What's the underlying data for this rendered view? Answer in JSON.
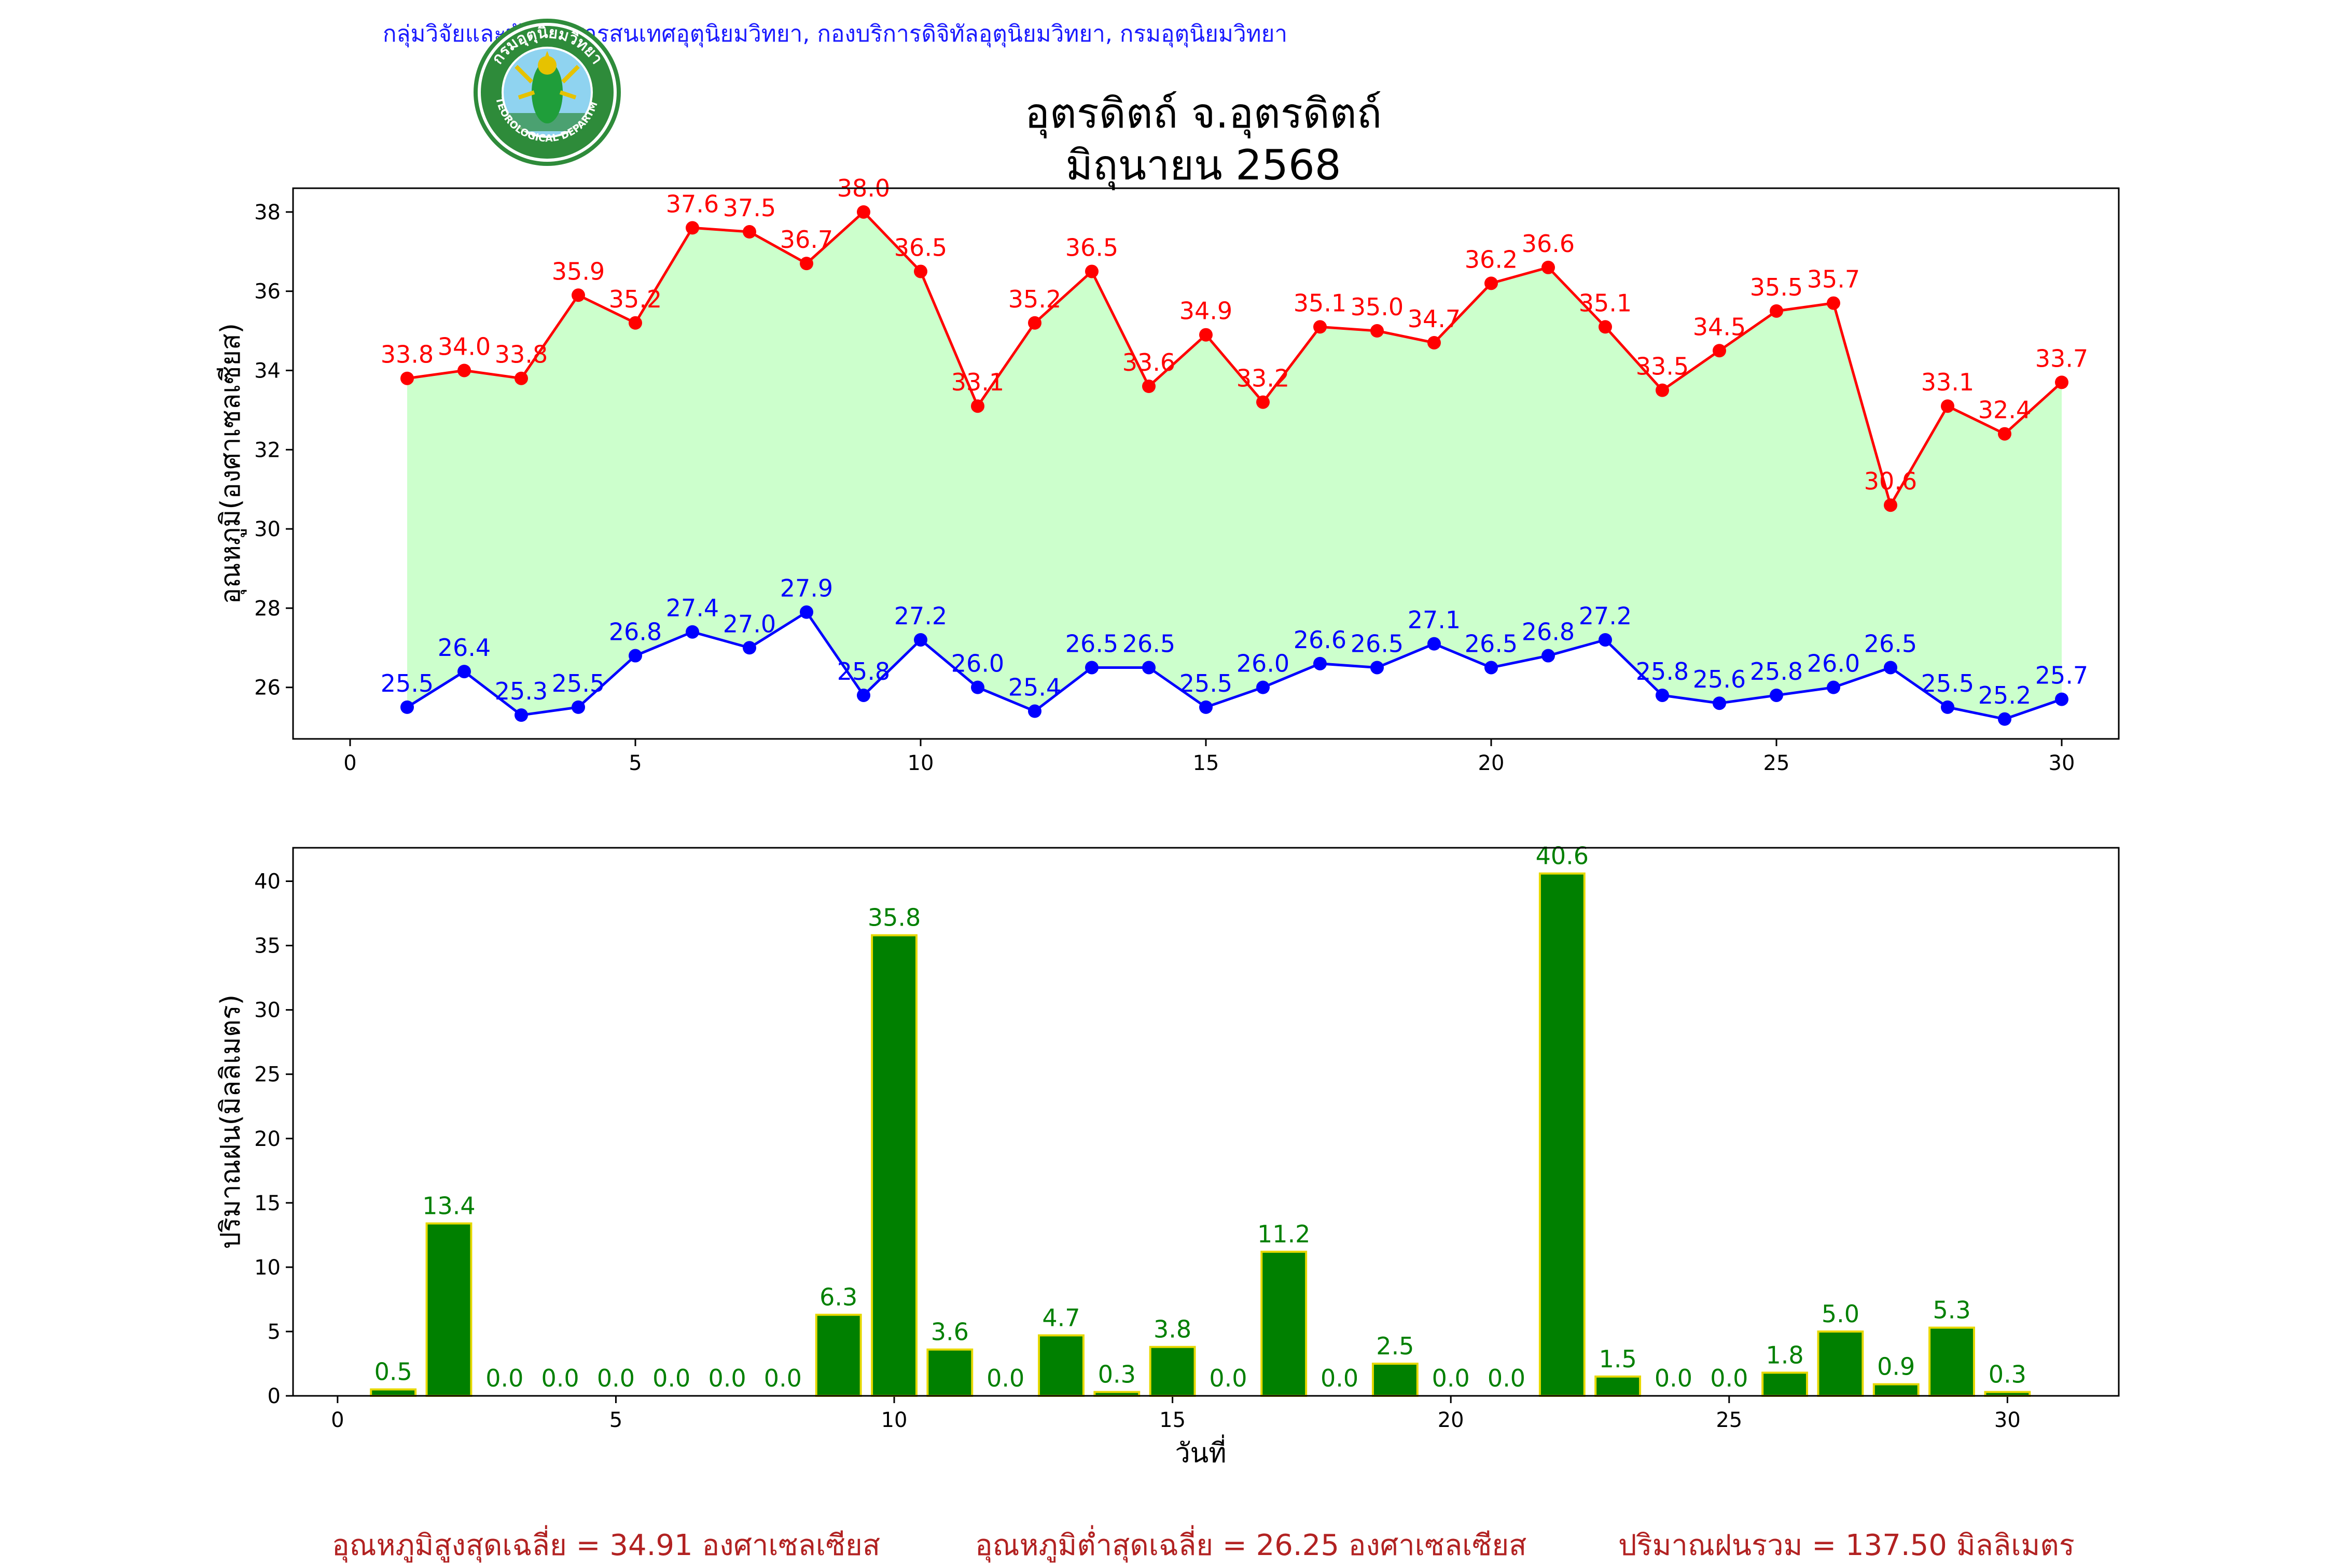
{
  "header": {
    "credit": "กลุ่มวิจัยและพัฒนาสารสนเทศอุตุนิยมวิทยา, กองบริการดิจิทัลอุตุนิยมวิทยา, กรมอุตุนิยมวิทยา",
    "title_line1": "อุตรดิตถ์ จ.อุตรดิตถ์",
    "title_line2": "มิถุนายน 2568",
    "logo_top": "กรมอุตุนิยมวิทยา",
    "logo_bottom": "METEOROLOGICAL DEPARTMENT"
  },
  "colors": {
    "max": "#ff0000",
    "min": "#0000ff",
    "fill": "#ccffcc",
    "rain_bar": "#008000",
    "rain_edge": "#e6d800",
    "rain_label": "#008000",
    "footer": "#b22222"
  },
  "footer": {
    "avg_max": "อุณหภูมิสูงสุดเฉลี่ย = 34.91 องศาเซลเซียส",
    "avg_min": "อุณหภูมิต่ำสุดเฉลี่ย = 26.25 องศาเซลเซียส",
    "total_rain": "ปริมาณฝนรวม = 137.50 มิลลิเมตร"
  },
  "chart_data": [
    {
      "type": "line",
      "ylabel": "อุณหภูมิ(องศาเซลเซียส)",
      "xlim": [
        -1,
        31
      ],
      "ylim": [
        24.7,
        38.6
      ],
      "xticks": [
        0,
        5,
        10,
        15,
        20,
        25,
        30
      ],
      "yticks": [
        26,
        28,
        30,
        32,
        34,
        36,
        38
      ],
      "x": [
        1,
        2,
        3,
        4,
        5,
        6,
        7,
        8,
        9,
        10,
        11,
        12,
        13,
        14,
        15,
        16,
        17,
        18,
        19,
        20,
        21,
        22,
        23,
        24,
        25,
        26,
        27,
        28,
        29,
        30
      ],
      "series": [
        {
          "values": [
            33.8,
            34.0,
            33.8,
            35.9,
            35.2,
            37.6,
            37.5,
            36.7,
            38.0,
            36.5,
            33.1,
            35.2,
            36.5,
            33.6,
            34.9,
            33.2,
            35.1,
            35.0,
            34.7,
            36.2,
            36.6,
            35.1,
            33.5,
            34.5,
            35.5,
            35.7,
            30.6,
            33.1,
            32.4,
            33.7
          ]
        },
        {
          "values": [
            25.5,
            26.4,
            25.3,
            25.5,
            26.8,
            27.4,
            27.0,
            27.9,
            25.8,
            27.2,
            26.0,
            25.4,
            26.5,
            26.5,
            25.5,
            26.0,
            26.6,
            26.5,
            27.1,
            26.5,
            26.8,
            27.2,
            25.8,
            25.6,
            25.8,
            26.0,
            26.5,
            25.5,
            25.2,
            25.7
          ]
        }
      ]
    },
    {
      "type": "bar",
      "ylabel": "ปริมาณฝน(มิลลิเมตร)",
      "xlabel": "วันที่",
      "xlim": [
        -0.8,
        32
      ],
      "ylim": [
        0,
        42.6
      ],
      "xticks": [
        0,
        5,
        10,
        15,
        20,
        25,
        30
      ],
      "yticks": [
        0,
        5,
        10,
        15,
        20,
        25,
        30,
        35,
        40
      ],
      "x": [
        1,
        2,
        3,
        4,
        5,
        6,
        7,
        8,
        9,
        10,
        11,
        12,
        13,
        14,
        15,
        16,
        17,
        18,
        19,
        20,
        21,
        22,
        23,
        24,
        25,
        26,
        27,
        28,
        29,
        30
      ],
      "values": [
        0.5,
        13.4,
        0.0,
        0.0,
        0.0,
        0.0,
        0.0,
        0.0,
        6.3,
        35.8,
        3.6,
        0.0,
        4.7,
        0.3,
        3.8,
        0.0,
        11.2,
        0.0,
        2.5,
        0.0,
        0.0,
        40.6,
        1.5,
        0.0,
        0.0,
        1.8,
        5.0,
        0.9,
        5.3,
        0.3
      ]
    }
  ]
}
